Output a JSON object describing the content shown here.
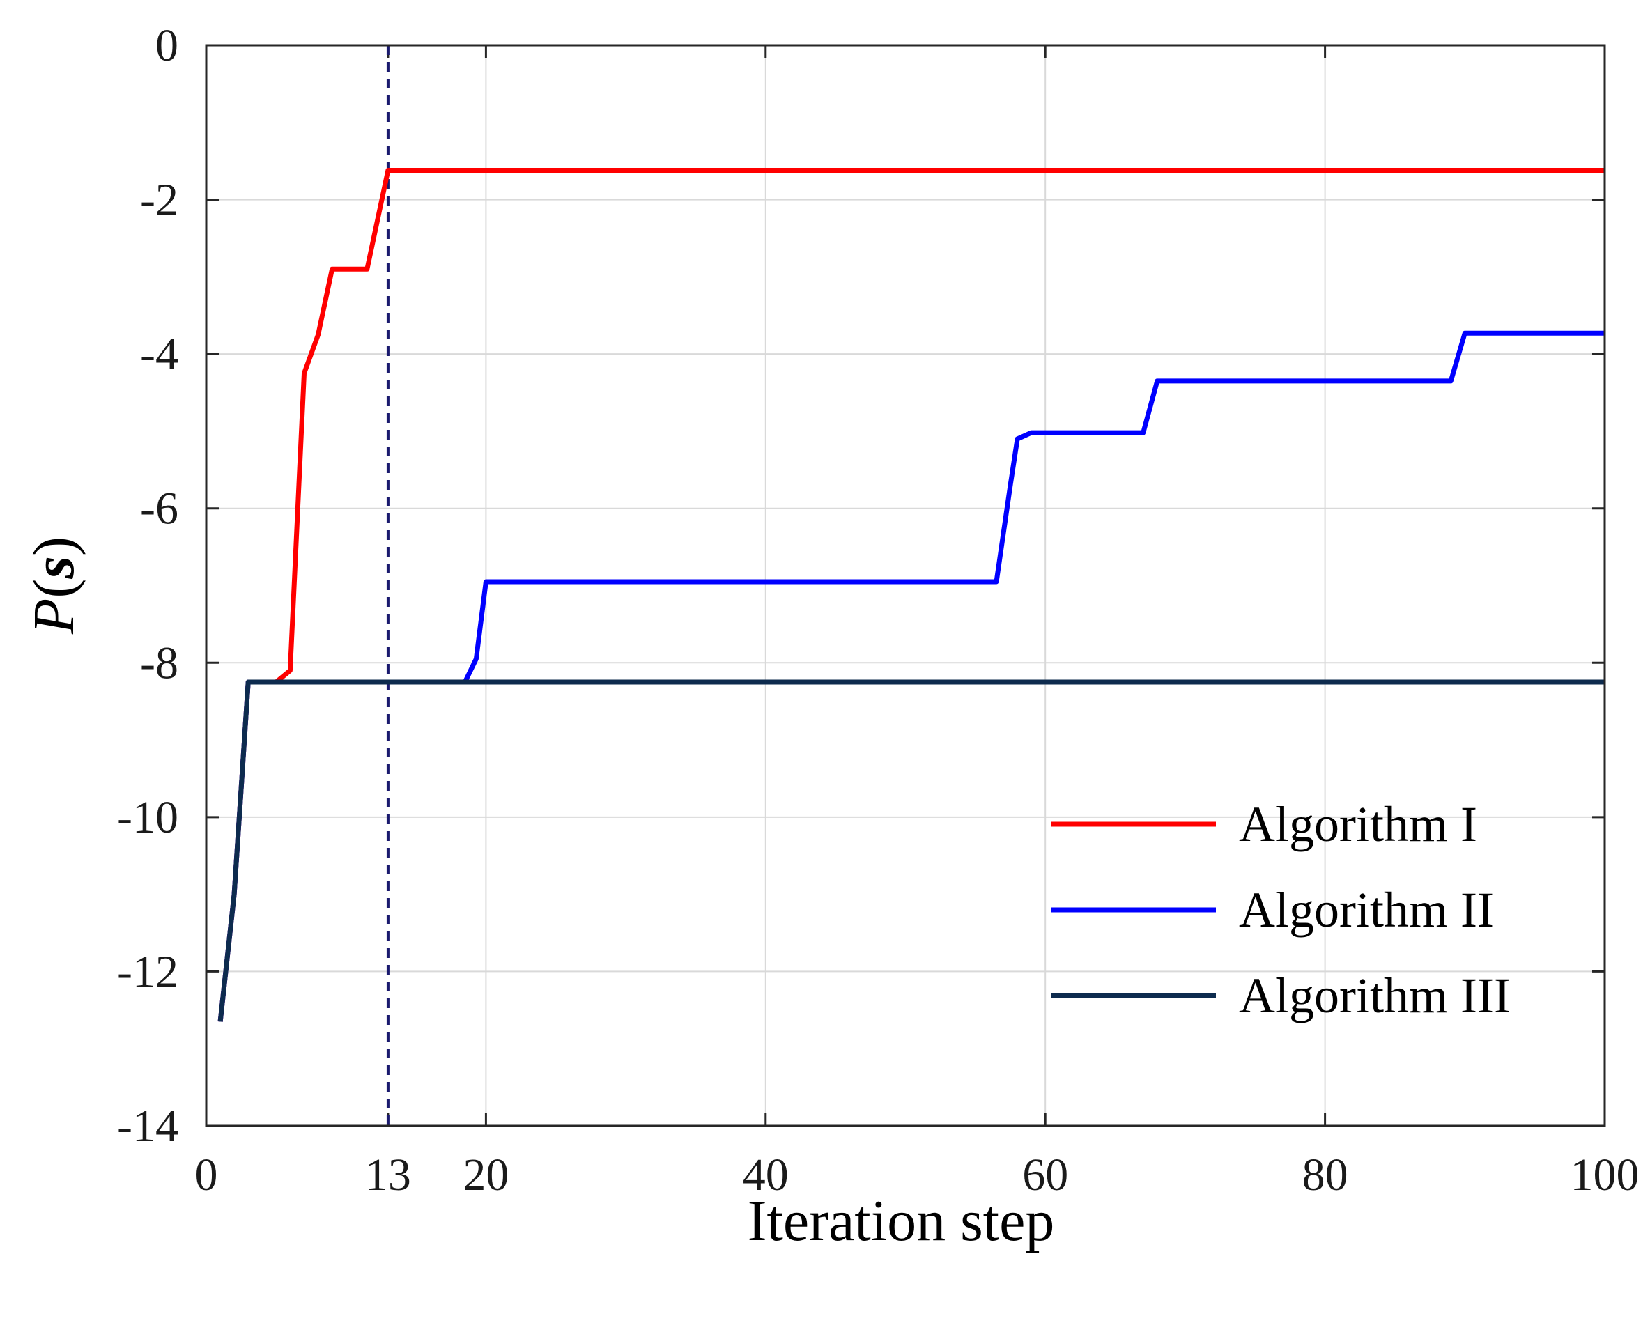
{
  "chart_data": {
    "type": "line",
    "xlabel": "Iteration step",
    "ylabel_main": "P",
    "ylabel_paren_open": "(",
    "ylabel_var": "s",
    "ylabel_paren_close": ")",
    "xlim": [
      0,
      100
    ],
    "ylim": [
      -14,
      0
    ],
    "xticks": [
      0,
      13,
      20,
      40,
      60,
      80,
      100
    ],
    "yticks": [
      0,
      -2,
      -4,
      -6,
      -8,
      -10,
      -12,
      -14
    ],
    "grid": true,
    "legend_position": "bottom-right",
    "reference_line": {
      "x": 13,
      "style": "dashed",
      "color": "#1a1a6e"
    },
    "series": [
      {
        "name": "Algorithm I",
        "color": "#ff0000",
        "points": [
          [
            1,
            -12.65
          ],
          [
            2,
            -11.0
          ],
          [
            3,
            -8.25
          ],
          [
            5,
            -8.25
          ],
          [
            6,
            -8.1
          ],
          [
            7,
            -4.25
          ],
          [
            8,
            -3.75
          ],
          [
            9,
            -2.9
          ],
          [
            11.5,
            -2.9
          ],
          [
            13,
            -1.62
          ],
          [
            100,
            -1.62
          ]
        ]
      },
      {
        "name": "Algorithm II",
        "color": "#0000ff",
        "points": [
          [
            1,
            -12.65
          ],
          [
            2,
            -11.0
          ],
          [
            3,
            -8.25
          ],
          [
            18.5,
            -8.25
          ],
          [
            19.3,
            -7.95
          ],
          [
            20,
            -6.95
          ],
          [
            56.5,
            -6.95
          ],
          [
            57.5,
            -5.7
          ],
          [
            58,
            -5.1
          ],
          [
            59,
            -5.02
          ],
          [
            67,
            -5.02
          ],
          [
            68,
            -4.35
          ],
          [
            89,
            -4.35
          ],
          [
            90,
            -3.73
          ],
          [
            100,
            -3.73
          ]
        ]
      },
      {
        "name": "Algorithm III",
        "color": "#0d2b4e",
        "points": [
          [
            1,
            -12.65
          ],
          [
            2,
            -11.0
          ],
          [
            3,
            -8.25
          ],
          [
            100,
            -8.25
          ]
        ]
      }
    ]
  }
}
